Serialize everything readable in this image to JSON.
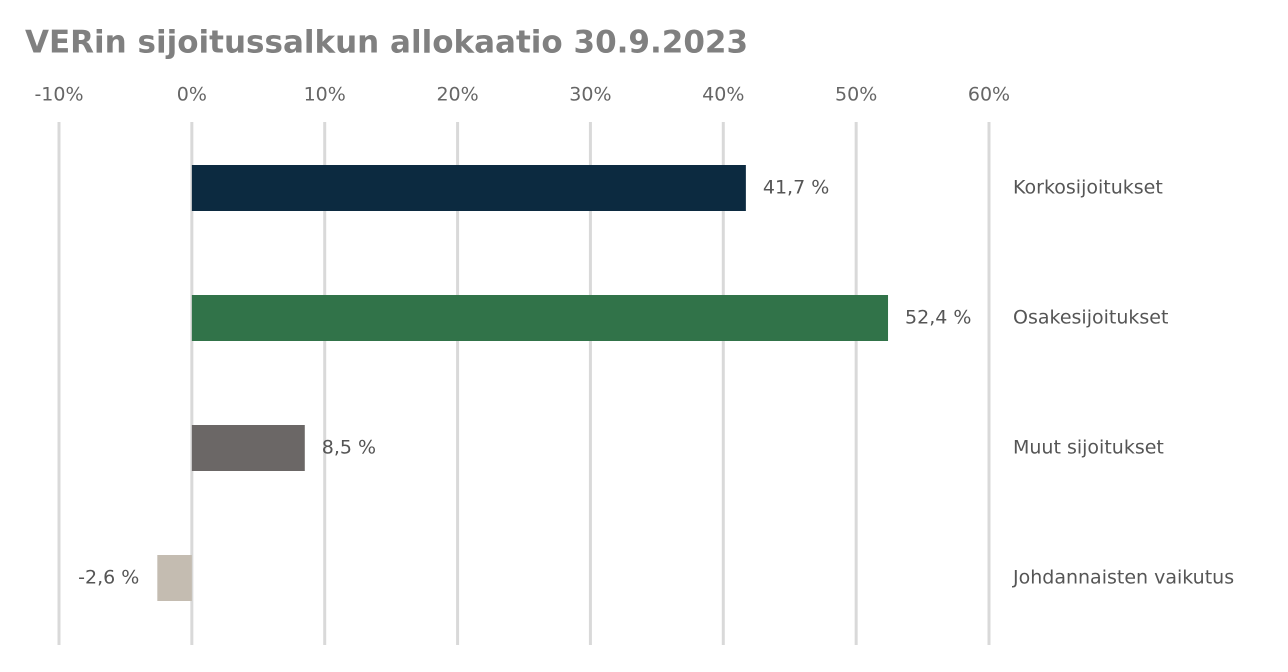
{
  "chart_data": {
    "type": "hbar",
    "title": "VERin sijoitussalkun allokaatio 30.9.2023",
    "categories": [
      "Korkosijoitukset",
      "Osakesijoitukset",
      "Muut sijoitukset",
      "Johdannaisten vaikutus"
    ],
    "values": [
      41.7,
      52.4,
      8.5,
      -2.6
    ],
    "value_labels": [
      "41,7 %",
      "52,4 %",
      "8,5 %",
      "-2,6 %"
    ],
    "colors": [
      "#0c2a40",
      "#317349",
      "#6b6766",
      "#c4bcb1"
    ],
    "xlim": [
      -10,
      60
    ],
    "xticks": [
      {
        "value": -10,
        "label": "-10%"
      },
      {
        "value": 0,
        "label": "0%"
      },
      {
        "value": 10,
        "label": "10%"
      },
      {
        "value": 20,
        "label": "20%"
      },
      {
        "value": 30,
        "label": "30%"
      },
      {
        "value": 40,
        "label": "40%"
      },
      {
        "value": 50,
        "label": "50%"
      },
      {
        "value": 60,
        "label": "60%"
      }
    ],
    "grid": true
  }
}
